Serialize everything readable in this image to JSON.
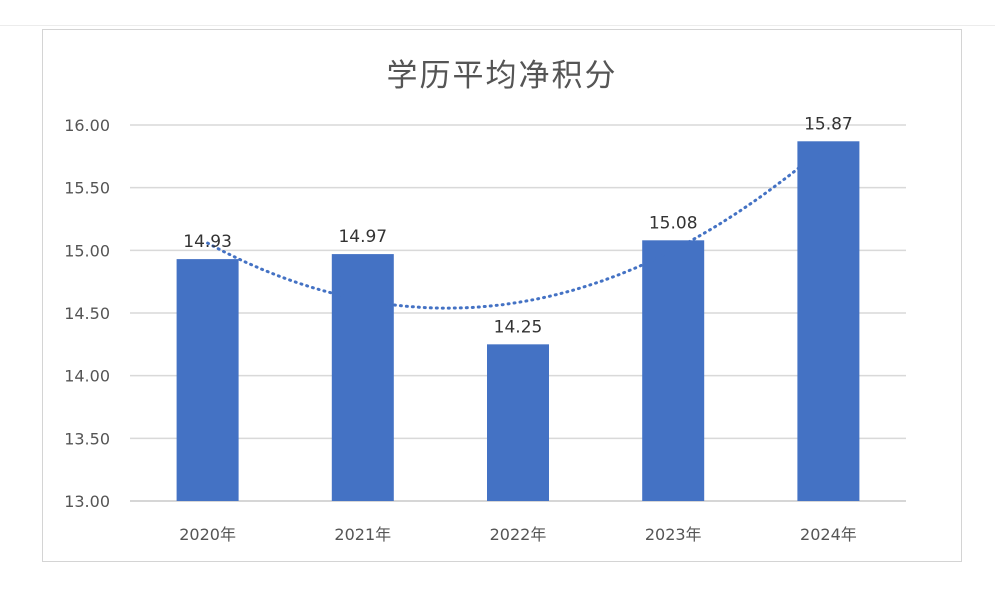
{
  "chart_data": {
    "type": "bar",
    "title": "学历平均净积分",
    "xlabel": "",
    "ylabel": "",
    "categories": [
      "2020年",
      "2021年",
      "2022年",
      "2023年",
      "2024年"
    ],
    "values": [
      14.93,
      14.97,
      14.25,
      15.08,
      15.87
    ],
    "value_labels": [
      "14.93",
      "14.97",
      "14.25",
      "15.08",
      "15.87"
    ],
    "ylim": [
      13.0,
      16.0
    ],
    "yticks": [
      13.0,
      13.5,
      14.0,
      14.5,
      15.0,
      15.5,
      16.0
    ],
    "ytick_labels": [
      "13.00",
      "13.50",
      "14.00",
      "14.50",
      "15.00",
      "15.50",
      "16.00"
    ],
    "grid": true,
    "legend": "none",
    "trendline": {
      "type": "polynomial",
      "style": "dotted"
    },
    "colors": {
      "bar": "#4472c4",
      "trendline": "#4472c4",
      "grid": "#d9d9d9"
    }
  }
}
